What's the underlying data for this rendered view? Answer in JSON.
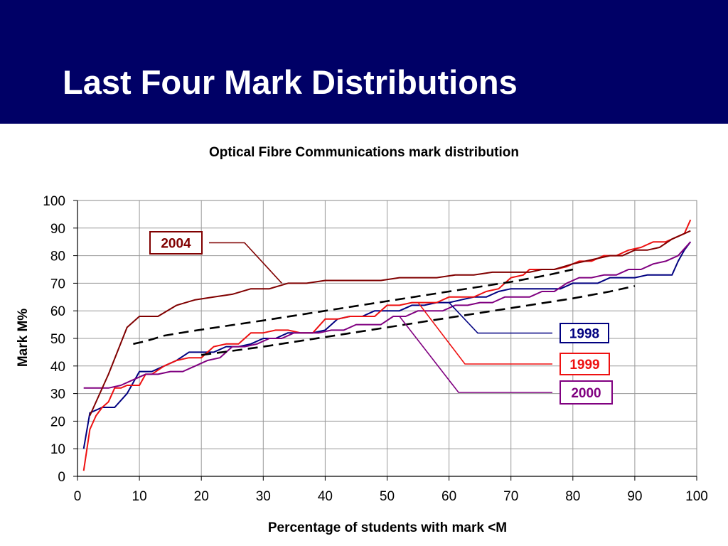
{
  "slide": {
    "title": "Last Four Mark Distributions",
    "header_color": "#000066"
  },
  "chart_data": {
    "type": "line",
    "title": "Optical Fibre Communications mark distribution",
    "xlabel": "Percentage of students with mark <M",
    "ylabel": "Mark M%",
    "xlim": [
      0,
      100
    ],
    "ylim": [
      0,
      100
    ],
    "xticks": [
      0,
      10,
      20,
      30,
      40,
      50,
      60,
      70,
      80,
      90,
      100
    ],
    "yticks": [
      0,
      10,
      20,
      30,
      40,
      50,
      60,
      70,
      80,
      90,
      100
    ],
    "grid": true,
    "series": [
      {
        "name": "1998",
        "color": "#000080",
        "points": [
          [
            1,
            10
          ],
          [
            2,
            23
          ],
          [
            4,
            25
          ],
          [
            6,
            25
          ],
          [
            8,
            30
          ],
          [
            10,
            38
          ],
          [
            12,
            38
          ],
          [
            14,
            40
          ],
          [
            16,
            42
          ],
          [
            18,
            45
          ],
          [
            22,
            45
          ],
          [
            24,
            47
          ],
          [
            26,
            47
          ],
          [
            28,
            48
          ],
          [
            30,
            50
          ],
          [
            32,
            50
          ],
          [
            34,
            52
          ],
          [
            38,
            52
          ],
          [
            40,
            53
          ],
          [
            42,
            57
          ],
          [
            44,
            58
          ],
          [
            46,
            58
          ],
          [
            48,
            60
          ],
          [
            52,
            60
          ],
          [
            54,
            62
          ],
          [
            56,
            62
          ],
          [
            58,
            63
          ],
          [
            60,
            63
          ],
          [
            62,
            64
          ],
          [
            64,
            65
          ],
          [
            66,
            65
          ],
          [
            68,
            67
          ],
          [
            70,
            68
          ],
          [
            78,
            68
          ],
          [
            80,
            70
          ],
          [
            84,
            70
          ],
          [
            86,
            72
          ],
          [
            90,
            72
          ],
          [
            92,
            73
          ],
          [
            94,
            73
          ],
          [
            96,
            73
          ],
          [
            97,
            78
          ],
          [
            98,
            82
          ],
          [
            99,
            85
          ]
        ]
      },
      {
        "name": "1999",
        "color": "#ee1111",
        "points": [
          [
            1,
            2
          ],
          [
            2,
            17
          ],
          [
            3,
            22
          ],
          [
            4,
            25
          ],
          [
            5,
            27
          ],
          [
            6,
            32
          ],
          [
            7,
            32
          ],
          [
            8,
            33
          ],
          [
            10,
            33
          ],
          [
            11,
            37
          ],
          [
            12,
            37
          ],
          [
            14,
            40
          ],
          [
            16,
            42
          ],
          [
            18,
            43
          ],
          [
            20,
            43
          ],
          [
            21,
            45
          ],
          [
            22,
            47
          ],
          [
            24,
            48
          ],
          [
            26,
            48
          ],
          [
            28,
            52
          ],
          [
            30,
            52
          ],
          [
            32,
            53
          ],
          [
            34,
            53
          ],
          [
            36,
            52
          ],
          [
            38,
            52
          ],
          [
            40,
            57
          ],
          [
            42,
            57
          ],
          [
            44,
            58
          ],
          [
            46,
            58
          ],
          [
            48,
            58
          ],
          [
            50,
            62
          ],
          [
            52,
            62
          ],
          [
            54,
            63
          ],
          [
            56,
            63
          ],
          [
            58,
            63
          ],
          [
            60,
            65
          ],
          [
            62,
            65
          ],
          [
            64,
            65
          ],
          [
            66,
            67
          ],
          [
            68,
            68
          ],
          [
            70,
            72
          ],
          [
            72,
            73
          ],
          [
            73,
            75
          ],
          [
            75,
            75
          ],
          [
            77,
            75
          ],
          [
            79,
            76
          ],
          [
            81,
            78
          ],
          [
            83,
            78
          ],
          [
            85,
            80
          ],
          [
            87,
            80
          ],
          [
            89,
            82
          ],
          [
            91,
            83
          ],
          [
            93,
            85
          ],
          [
            95,
            85
          ],
          [
            97,
            87
          ],
          [
            98,
            88
          ],
          [
            99,
            93
          ]
        ]
      },
      {
        "name": "2000",
        "color": "#800080",
        "points": [
          [
            1,
            32
          ],
          [
            3,
            32
          ],
          [
            5,
            32
          ],
          [
            7,
            33
          ],
          [
            9,
            35
          ],
          [
            11,
            37
          ],
          [
            13,
            37
          ],
          [
            15,
            38
          ],
          [
            17,
            38
          ],
          [
            19,
            40
          ],
          [
            21,
            42
          ],
          [
            23,
            43
          ],
          [
            25,
            47
          ],
          [
            27,
            47
          ],
          [
            29,
            48
          ],
          [
            31,
            50
          ],
          [
            33,
            50
          ],
          [
            35,
            52
          ],
          [
            37,
            52
          ],
          [
            39,
            52
          ],
          [
            41,
            53
          ],
          [
            43,
            53
          ],
          [
            45,
            55
          ],
          [
            47,
            55
          ],
          [
            49,
            55
          ],
          [
            51,
            58
          ],
          [
            53,
            58
          ],
          [
            55,
            60
          ],
          [
            57,
            60
          ],
          [
            59,
            60
          ],
          [
            61,
            62
          ],
          [
            63,
            62
          ],
          [
            65,
            63
          ],
          [
            67,
            63
          ],
          [
            69,
            65
          ],
          [
            71,
            65
          ],
          [
            73,
            65
          ],
          [
            75,
            67
          ],
          [
            77,
            67
          ],
          [
            79,
            70
          ],
          [
            81,
            72
          ],
          [
            83,
            72
          ],
          [
            85,
            73
          ],
          [
            87,
            73
          ],
          [
            89,
            75
          ],
          [
            91,
            75
          ],
          [
            93,
            77
          ],
          [
            95,
            78
          ],
          [
            97,
            80
          ],
          [
            99,
            85
          ]
        ]
      },
      {
        "name": "2004",
        "color": "#800000",
        "points": [
          [
            2,
            22
          ],
          [
            5,
            37
          ],
          [
            8,
            54
          ],
          [
            10,
            58
          ],
          [
            13,
            58
          ],
          [
            16,
            62
          ],
          [
            19,
            64
          ],
          [
            22,
            65
          ],
          [
            25,
            66
          ],
          [
            28,
            68
          ],
          [
            31,
            68
          ],
          [
            34,
            70
          ],
          [
            37,
            70
          ],
          [
            40,
            71
          ],
          [
            43,
            71
          ],
          [
            46,
            71
          ],
          [
            49,
            71
          ],
          [
            52,
            72
          ],
          [
            55,
            72
          ],
          [
            58,
            72
          ],
          [
            61,
            73
          ],
          [
            64,
            73
          ],
          [
            67,
            74
          ],
          [
            70,
            74
          ],
          [
            73,
            74
          ],
          [
            75,
            75
          ],
          [
            77,
            75
          ],
          [
            80,
            77
          ],
          [
            82,
            78
          ],
          [
            84,
            79
          ],
          [
            86,
            80
          ],
          [
            88,
            80
          ],
          [
            90,
            82
          ],
          [
            92,
            82
          ],
          [
            94,
            83
          ],
          [
            96,
            86
          ],
          [
            98,
            88
          ],
          [
            99,
            89
          ]
        ]
      },
      {
        "name": "trend-upper",
        "color": "#000000",
        "dashed": true,
        "points": [
          [
            9,
            48
          ],
          [
            11,
            49
          ],
          [
            14,
            51
          ],
          [
            18,
            52.5
          ],
          [
            24,
            54.5
          ],
          [
            30,
            56.5
          ],
          [
            40,
            60
          ],
          [
            50,
            63.5
          ],
          [
            60,
            67
          ],
          [
            70,
            70.5
          ],
          [
            76,
            73
          ],
          [
            80,
            75
          ]
        ]
      },
      {
        "name": "trend-lower",
        "color": "#000000",
        "dashed": true,
        "points": [
          [
            20,
            44
          ],
          [
            25,
            45.5
          ],
          [
            30,
            47
          ],
          [
            40,
            50.5
          ],
          [
            50,
            54
          ],
          [
            60,
            57.5
          ],
          [
            70,
            61
          ],
          [
            80,
            64.5
          ],
          [
            86,
            67
          ],
          [
            90,
            69
          ]
        ]
      }
    ],
    "labels": [
      {
        "text": "2004",
        "series": "2004",
        "color": "#800000",
        "anchor": [
          33,
          70
        ]
      },
      {
        "text": "1998",
        "series": "1998",
        "color": "#000080",
        "anchor": [
          60,
          63
        ]
      },
      {
        "text": "1999",
        "series": "1999",
        "color": "#ee1111",
        "anchor": [
          55,
          63
        ]
      },
      {
        "text": "2000",
        "series": "2000",
        "color": "#800080",
        "anchor": [
          52,
          58
        ]
      }
    ]
  }
}
